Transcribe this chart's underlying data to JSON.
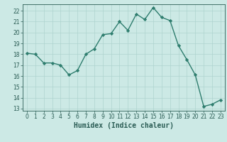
{
  "x": [
    0,
    1,
    2,
    3,
    4,
    5,
    6,
    7,
    8,
    9,
    10,
    11,
    12,
    13,
    14,
    15,
    16,
    17,
    18,
    19,
    20,
    21,
    22,
    23
  ],
  "y": [
    18.1,
    18.0,
    17.2,
    17.2,
    17.0,
    16.1,
    16.5,
    18.0,
    18.5,
    19.8,
    19.9,
    21.0,
    20.2,
    21.7,
    21.2,
    22.3,
    21.4,
    21.1,
    18.8,
    17.5,
    16.1,
    13.2,
    13.4,
    13.8
  ],
  "line_color": "#2e7d6e",
  "marker": "D",
  "marker_size": 2.2,
  "bg_color": "#cce9e5",
  "grid_color": "#aed4cf",
  "xlabel": "Humidex (Indice chaleur)",
  "xlim": [
    -0.5,
    23.5
  ],
  "ylim": [
    12.8,
    22.6
  ],
  "yticks": [
    13,
    14,
    15,
    16,
    17,
    18,
    19,
    20,
    21,
    22
  ],
  "xticks": [
    0,
    1,
    2,
    3,
    4,
    5,
    6,
    7,
    8,
    9,
    10,
    11,
    12,
    13,
    14,
    15,
    16,
    17,
    18,
    19,
    20,
    21,
    22,
    23
  ],
  "tick_fontsize": 5.5,
  "label_fontsize": 7.0,
  "line_width": 1.0
}
